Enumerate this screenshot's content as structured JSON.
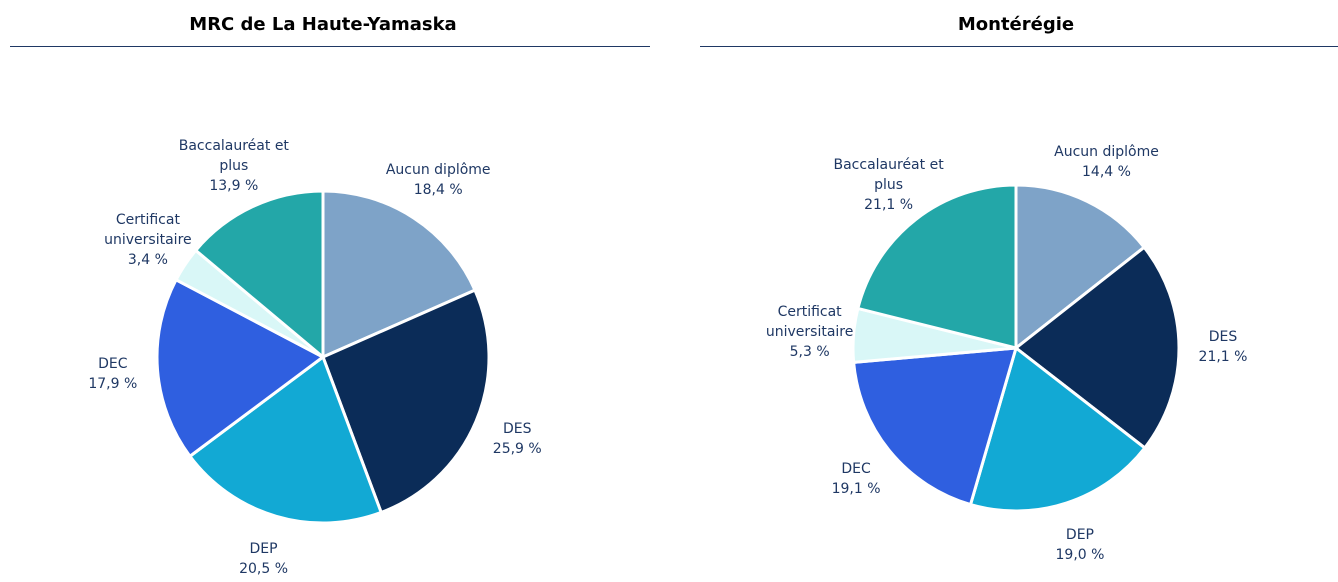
{
  "chart_data": [
    {
      "type": "pie",
      "title": "MRC de La Haute-Yamaska",
      "categories": [
        "Aucun diplôme",
        "DES",
        "DEP",
        "DEC",
        "Certificat universitaire",
        "Baccalauréat et plus"
      ],
      "values": [
        18.4,
        25.9,
        20.5,
        17.9,
        3.4,
        13.9
      ],
      "value_labels": [
        "18,4 %",
        "25,9 %",
        "20,5 %",
        "17,9 %",
        "3,4 %",
        "13,9 %"
      ],
      "colors": [
        "#7ea3c8",
        "#0b2c58",
        "#12a9d4",
        "#2f5fe0",
        "#d9f7f7",
        "#23a7a8"
      ]
    },
    {
      "type": "pie",
      "title": "Montérégie",
      "categories": [
        "Aucun diplôme",
        "DES",
        "DEP",
        "DEC",
        "Certificat universitaire",
        "Baccalauréat et plus"
      ],
      "values": [
        14.4,
        21.1,
        19.0,
        19.1,
        5.3,
        21.1
      ],
      "value_labels": [
        "14,4 %",
        "21,1 %",
        "19,0 %",
        "19,1 %",
        "5,3 %",
        "21,1 %"
      ],
      "colors": [
        "#7ea3c8",
        "#0b2c58",
        "#12a9d4",
        "#2f5fe0",
        "#d9f7f7",
        "#23a7a8"
      ]
    }
  ]
}
